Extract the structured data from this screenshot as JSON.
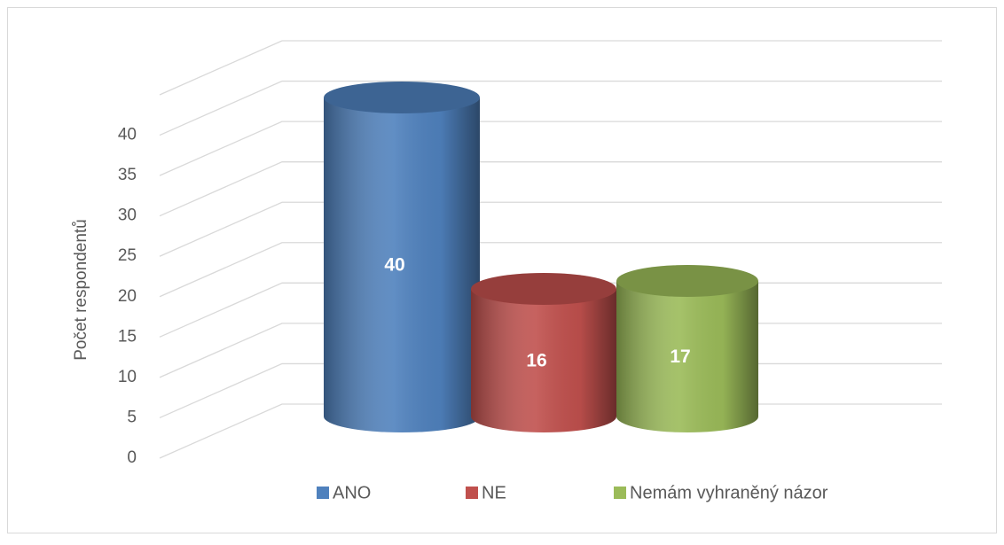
{
  "chart_data": {
    "type": "cylinder-bar",
    "y_label": "Počet respondentů",
    "series": [
      {
        "name": "ANO",
        "color": "#4f81bd",
        "values": [
          40
        ]
      },
      {
        "name": "NE",
        "color": "#c0504d",
        "values": [
          16
        ]
      },
      {
        "name": "Nemám vyhraněný názor",
        "color": "#9bbb59",
        "values": [
          17
        ]
      }
    ],
    "ylim": [
      0,
      45
    ],
    "yticks": [
      0,
      5,
      10,
      15,
      20,
      25,
      30,
      35,
      40
    ],
    "grid": true,
    "legend": "bottom"
  }
}
